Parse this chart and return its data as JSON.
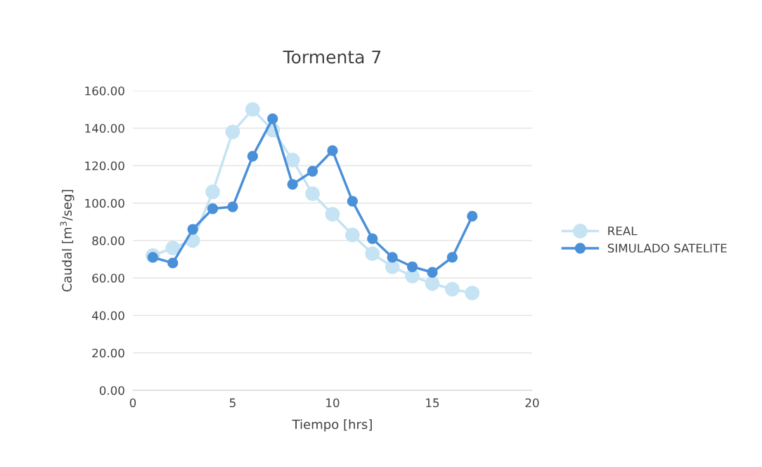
{
  "chart_data": {
    "type": "line",
    "title": "Tormenta 7",
    "xlabel": "Tiempo [hrs]",
    "ylabel": "Caudal [m$^{3}$/seg]",
    "x": [
      1,
      2,
      3,
      4,
      5,
      6,
      7,
      8,
      9,
      10,
      11,
      12,
      13,
      14,
      15,
      16,
      17
    ],
    "series": [
      {
        "name": "REAL",
        "color": "#c5e3f3",
        "values": [
          72,
          76,
          80,
          106,
          138,
          150,
          139,
          123,
          105,
          94,
          83,
          73,
          66,
          61,
          57,
          54,
          52
        ]
      },
      {
        "name": "SIMULADO SATELITE",
        "color": "#4a90d9",
        "values": [
          71,
          68,
          86,
          97,
          98,
          125,
          145,
          110,
          117,
          128,
          101,
          81,
          71,
          66,
          63,
          71,
          93
        ]
      }
    ],
    "xlim": [
      0,
      20
    ],
    "xticks": [
      0,
      5,
      10,
      15,
      20
    ],
    "ylim": [
      0,
      160
    ],
    "yticks": [
      {
        "value": 0,
        "label": "0.00"
      },
      {
        "value": 20,
        "label": "20.00"
      },
      {
        "value": 40,
        "label": "40.00"
      },
      {
        "value": 60,
        "label": "60.00"
      },
      {
        "value": 80,
        "label": "80.00"
      },
      {
        "value": 100,
        "label": "100.00"
      },
      {
        "value": 120,
        "label": "120.00"
      },
      {
        "value": 140,
        "label": "140.00"
      },
      {
        "value": 160,
        "label": "160.00"
      }
    ],
    "grid": "y",
    "legend": "right",
    "marker": "circle",
    "line_style": "solid"
  }
}
